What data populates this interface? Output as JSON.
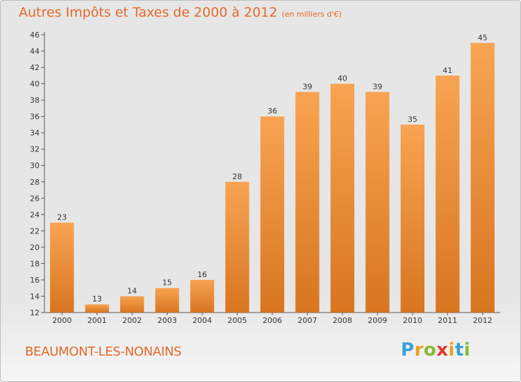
{
  "title": "Autres Impôts et Taxes de 2000 à 2012",
  "unit": "(en milliers d'€)",
  "commune": "BEAUMONT-LES-NONAINS",
  "logo": {
    "letters": [
      {
        "ch": "P",
        "color": "#3aa0d8"
      },
      {
        "ch": "r",
        "color": "#f0a020"
      },
      {
        "ch": "o",
        "color": "#88b934"
      },
      {
        "ch": "x",
        "color": "#e23a2a"
      },
      {
        "ch": "i",
        "color": "#f0a020"
      },
      {
        "ch": "t",
        "color": "#3aa0d8"
      },
      {
        "ch": "i",
        "color": "#88b934"
      }
    ]
  },
  "colors": {
    "bar_top": "#f8a452",
    "bar_bottom": "#d87520",
    "text_accent": "#e2692a"
  },
  "chart_data": {
    "type": "bar",
    "title": "Autres Impôts et Taxes de 2000 à 2012",
    "unit": "(en milliers d'€)",
    "categories": [
      "2000",
      "2001",
      "2002",
      "2003",
      "2004",
      "2005",
      "2006",
      "2007",
      "2008",
      "2009",
      "2010",
      "2011",
      "2012"
    ],
    "values": [
      23,
      13,
      14,
      15,
      16,
      28,
      36,
      39,
      40,
      39,
      35,
      41,
      45
    ],
    "ylim": [
      12,
      46
    ],
    "yticks": [
      12,
      14,
      16,
      18,
      20,
      22,
      24,
      26,
      28,
      30,
      32,
      34,
      36,
      38,
      40,
      42,
      44,
      46
    ],
    "grid": false,
    "legend": "none"
  }
}
